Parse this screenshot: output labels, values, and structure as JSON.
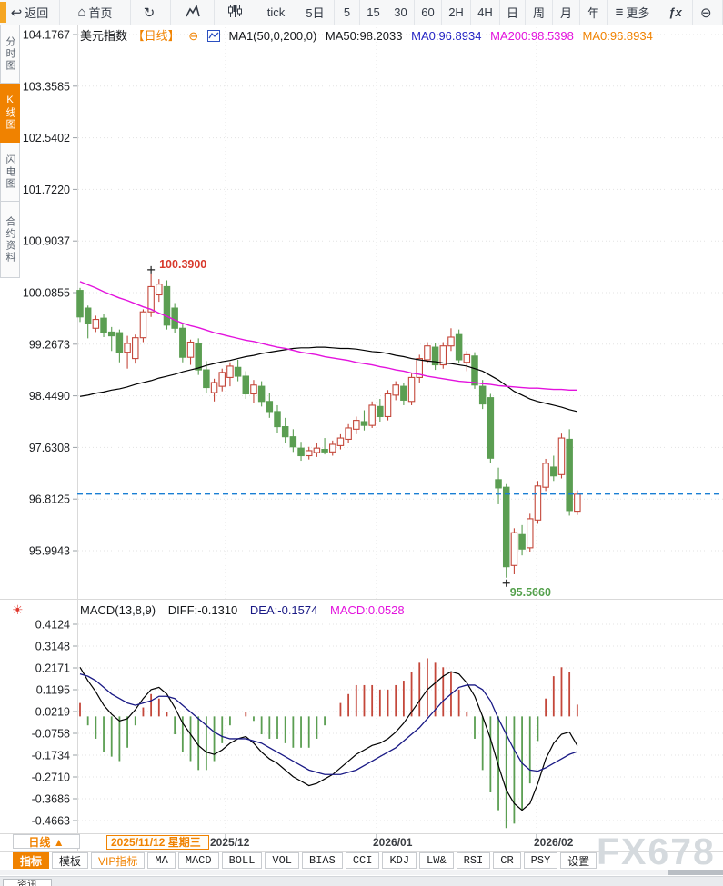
{
  "toolbar": {
    "back_label": "返回",
    "home_label": "首页",
    "tick_label": "tick",
    "day5_label": "5日",
    "intervals": [
      "5",
      "15",
      "30",
      "60",
      "2H",
      "4H",
      "日",
      "周",
      "月",
      "年"
    ],
    "more_label": "更多",
    "fx_label": "ƒx"
  },
  "sidebar": {
    "items": [
      {
        "label": "分时图",
        "active": false
      },
      {
        "label": "K线图",
        "active": true
      },
      {
        "label": "闪电图",
        "active": false
      },
      {
        "label": "合约资料",
        "active": false
      }
    ]
  },
  "price_header": {
    "symbol": "美元指数",
    "period": "【日线】",
    "collapse_icon": "⊖",
    "ma_def": "MA1(50,0,200,0)",
    "ma50": "MA50:98.2033",
    "ma0_blue": "MA0:96.8934",
    "ma200": "MA200:98.5398",
    "ma0_orange": "MA0:96.8934"
  },
  "macd_header": {
    "def": "MACD(13,8,9)",
    "diff": "DIFF:-0.1310",
    "dea": "DEA:-0.1574",
    "macd": "MACD:0.0528",
    "settings_icon": "☀"
  },
  "bottom": {
    "period_label": "日线 ▲",
    "tabs": [
      {
        "label": "指标",
        "state": "active"
      },
      {
        "label": "模板",
        "state": "cjk"
      },
      {
        "label": "VIP指标",
        "state": "vip"
      },
      {
        "label": "MA",
        "state": ""
      },
      {
        "label": "MACD",
        "state": ""
      },
      {
        "label": "BOLL",
        "state": ""
      },
      {
        "label": "VOL",
        "state": ""
      },
      {
        "label": "BIAS",
        "state": ""
      },
      {
        "label": "CCI",
        "state": ""
      },
      {
        "label": "KDJ",
        "state": ""
      },
      {
        "label": "LW&",
        "state": ""
      },
      {
        "label": "RSI",
        "state": ""
      },
      {
        "label": "CR",
        "state": ""
      },
      {
        "label": "PSY",
        "state": ""
      },
      {
        "label": "设置",
        "state": "cjk"
      }
    ],
    "news_tab": "资讯"
  },
  "watermark": "FX678",
  "chart_data": {
    "type": "candlestick+macd",
    "title": "美元指数 日线 (US Dollar Index, daily)",
    "price_axis_ticks": [
      "104.1767",
      "103.3585",
      "102.5402",
      "101.7220",
      "100.9037",
      "100.0855",
      "99.2673",
      "98.4490",
      "97.6308",
      "96.8125",
      "95.9943"
    ],
    "macd_axis_ticks": [
      "0.4124",
      "0.3148",
      "0.2171",
      "0.1195",
      "0.0219",
      "-0.0758",
      "-0.1734",
      "-0.2710",
      "-0.3686",
      "-0.4663"
    ],
    "x_labels": [
      "2025/11/12 星期三",
      "2025/12",
      "2026/01",
      "2026/02"
    ],
    "high_annotation": "100.3900",
    "low_annotation": "95.5660",
    "current_price": 96.8934,
    "price_range": [
      95.9943,
      104.1767
    ],
    "macd_range": [
      -0.4663,
      0.4124
    ],
    "candles": [
      [
        100.12,
        100.16,
        99.62,
        99.7
      ],
      [
        99.84,
        99.88,
        99.36,
        99.6
      ],
      [
        99.52,
        99.72,
        99.46,
        99.66
      ],
      [
        99.68,
        99.74,
        99.38,
        99.45
      ],
      [
        99.46,
        99.54,
        99.16,
        99.4
      ],
      [
        99.45,
        99.5,
        98.98,
        99.14
      ],
      [
        99.14,
        99.4,
        98.88,
        99.28
      ],
      [
        99.04,
        99.42,
        98.96,
        99.37
      ],
      [
        99.37,
        99.82,
        99.3,
        99.78
      ],
      [
        99.78,
        100.39,
        99.7,
        100.18
      ],
      [
        100.05,
        100.3,
        99.94,
        100.22
      ],
      [
        100.18,
        100.28,
        99.5,
        99.57
      ],
      [
        99.84,
        99.92,
        99.44,
        99.52
      ],
      [
        99.52,
        99.58,
        98.98,
        99.06
      ],
      [
        99.06,
        99.34,
        98.94,
        99.3
      ],
      [
        99.28,
        99.36,
        98.78,
        98.86
      ],
      [
        98.86,
        99.0,
        98.5,
        98.58
      ],
      [
        98.5,
        98.72,
        98.36,
        98.66
      ],
      [
        98.6,
        98.88,
        98.52,
        98.82
      ],
      [
        98.74,
        98.98,
        98.6,
        98.92
      ],
      [
        98.9,
        99.02,
        98.68,
        98.76
      ],
      [
        98.76,
        98.84,
        98.4,
        98.48
      ],
      [
        98.48,
        98.7,
        98.34,
        98.62
      ],
      [
        98.6,
        98.68,
        98.28,
        98.36
      ],
      [
        98.36,
        98.5,
        98.1,
        98.2
      ],
      [
        98.2,
        98.3,
        97.86,
        97.96
      ],
      [
        97.96,
        98.1,
        97.7,
        97.8
      ],
      [
        97.8,
        97.92,
        97.56,
        97.64
      ],
      [
        97.62,
        97.72,
        97.42,
        97.5
      ],
      [
        97.5,
        97.64,
        97.44,
        97.58
      ],
      [
        97.55,
        97.7,
        97.48,
        97.62
      ],
      [
        97.6,
        97.78,
        97.52,
        97.56
      ],
      [
        97.56,
        97.74,
        97.5,
        97.68
      ],
      [
        97.66,
        97.84,
        97.6,
        97.78
      ],
      [
        97.76,
        98.0,
        97.7,
        97.94
      ],
      [
        97.92,
        98.12,
        97.84,
        98.06
      ],
      [
        98.04,
        98.22,
        97.9,
        97.98
      ],
      [
        97.98,
        98.36,
        97.94,
        98.3
      ],
      [
        98.28,
        98.4,
        98.04,
        98.12
      ],
      [
        98.12,
        98.54,
        98.06,
        98.48
      ],
      [
        98.46,
        98.68,
        98.38,
        98.62
      ],
      [
        98.6,
        98.66,
        98.3,
        98.38
      ],
      [
        98.36,
        98.8,
        98.3,
        98.74
      ],
      [
        98.74,
        99.1,
        98.66,
        99.04
      ],
      [
        99.02,
        99.3,
        98.96,
        99.24
      ],
      [
        99.22,
        99.28,
        98.86,
        98.94
      ],
      [
        98.94,
        99.3,
        98.88,
        99.24
      ],
      [
        99.24,
        99.52,
        99.16,
        99.38
      ],
      [
        99.42,
        99.5,
        98.96,
        99.02
      ],
      [
        98.98,
        99.16,
        98.84,
        99.1
      ],
      [
        99.08,
        99.14,
        98.56,
        98.62
      ],
      [
        98.6,
        98.7,
        98.24,
        98.32
      ],
      [
        98.42,
        98.48,
        97.38,
        97.46
      ],
      [
        97.12,
        97.31,
        96.73,
        96.99
      ],
      [
        97.0,
        97.05,
        95.566,
        95.74
      ],
      [
        95.76,
        96.35,
        95.62,
        96.28
      ],
      [
        96.25,
        96.4,
        95.92,
        96.02
      ],
      [
        96.04,
        96.58,
        95.98,
        96.5
      ],
      [
        96.48,
        97.1,
        96.42,
        97.02
      ],
      [
        97.0,
        97.45,
        96.94,
        97.38
      ],
      [
        97.32,
        97.5,
        97.1,
        97.18
      ],
      [
        97.2,
        97.85,
        97.14,
        97.78
      ],
      [
        97.76,
        97.92,
        96.55,
        96.63
      ],
      [
        96.62,
        96.95,
        96.56,
        96.89
      ]
    ],
    "ma50": [
      98.44,
      98.46,
      98.49,
      98.51,
      98.54,
      98.56,
      98.59,
      98.63,
      98.66,
      98.69,
      98.73,
      98.76,
      98.79,
      98.83,
      98.86,
      98.89,
      98.93,
      98.96,
      98.99,
      99.01,
      99.04,
      99.07,
      99.09,
      99.12,
      99.14,
      99.16,
      99.18,
      99.2,
      99.21,
      99.21,
      99.22,
      99.22,
      99.21,
      99.2,
      99.2,
      99.19,
      99.17,
      99.15,
      99.14,
      99.12,
      99.09,
      99.07,
      99.04,
      99.02,
      99.0,
      98.99,
      98.97,
      98.96,
      98.94,
      98.92,
      98.88,
      98.84,
      98.77,
      98.7,
      98.61,
      98.52,
      98.46,
      98.4,
      98.36,
      98.33,
      98.3,
      98.27,
      98.23,
      98.2
    ],
    "ma200": [
      100.26,
      100.21,
      100.16,
      100.1,
      100.05,
      100.0,
      99.96,
      99.91,
      99.86,
      99.82,
      99.76,
      99.71,
      99.65,
      99.6,
      99.56,
      99.53,
      99.49,
      99.45,
      99.42,
      99.39,
      99.36,
      99.33,
      99.31,
      99.28,
      99.25,
      99.22,
      99.2,
      99.17,
      99.14,
      99.12,
      99.1,
      99.07,
      99.05,
      99.03,
      99.01,
      98.98,
      98.96,
      98.94,
      98.91,
      98.89,
      98.86,
      98.84,
      98.81,
      98.79,
      98.76,
      98.74,
      98.72,
      98.7,
      98.68,
      98.67,
      98.66,
      98.64,
      98.63,
      98.61,
      98.6,
      98.59,
      98.58,
      98.57,
      98.57,
      98.56,
      98.55,
      98.55,
      98.54,
      98.54
    ],
    "diff": [
      0.22,
      0.16,
      0.11,
      0.05,
      0.01,
      -0.02,
      -0.01,
      0.03,
      0.08,
      0.12,
      0.13,
      0.1,
      0.04,
      -0.03,
      -0.08,
      -0.13,
      -0.16,
      -0.17,
      -0.15,
      -0.12,
      -0.1,
      -0.09,
      -0.12,
      -0.16,
      -0.19,
      -0.21,
      -0.24,
      -0.27,
      -0.29,
      -0.31,
      -0.3,
      -0.28,
      -0.26,
      -0.23,
      -0.2,
      -0.17,
      -0.15,
      -0.13,
      -0.12,
      -0.1,
      -0.07,
      -0.03,
      0.02,
      0.07,
      0.12,
      0.15,
      0.18,
      0.2,
      0.19,
      0.15,
      0.09,
      0.0,
      -0.1,
      -0.22,
      -0.33,
      -0.39,
      -0.42,
      -0.39,
      -0.3,
      -0.19,
      -0.12,
      -0.08,
      -0.07,
      -0.131
    ],
    "dea": [
      0.19,
      0.18,
      0.16,
      0.13,
      0.1,
      0.08,
      0.06,
      0.05,
      0.06,
      0.07,
      0.09,
      0.09,
      0.08,
      0.05,
      0.02,
      -0.01,
      -0.04,
      -0.07,
      -0.09,
      -0.1,
      -0.1,
      -0.1,
      -0.11,
      -0.12,
      -0.14,
      -0.16,
      -0.18,
      -0.2,
      -0.22,
      -0.24,
      -0.25,
      -0.26,
      -0.26,
      -0.26,
      -0.25,
      -0.24,
      -0.22,
      -0.2,
      -0.18,
      -0.16,
      -0.14,
      -0.11,
      -0.08,
      -0.05,
      -0.01,
      0.03,
      0.07,
      0.1,
      0.13,
      0.14,
      0.14,
      0.12,
      0.07,
      -0.01,
      -0.08,
      -0.15,
      -0.21,
      -0.24,
      -0.245,
      -0.23,
      -0.21,
      -0.19,
      -0.17,
      -0.1574
    ],
    "macd_hist_rule": "2*(diff-dea)",
    "legend_position": "top-left",
    "grid": true,
    "colors": {
      "up": "#c4473a",
      "down": "#5b9e52",
      "ma50": "#000000",
      "ma200": "#e312dd",
      "diff": "#000000",
      "dea": "#191985",
      "hist_pos": "#c4473a",
      "hist_neg": "#5b9e52",
      "current_line": "#1a7fd4",
      "accent_orange": "#f08200",
      "grid": "#e3e3e3"
    }
  }
}
